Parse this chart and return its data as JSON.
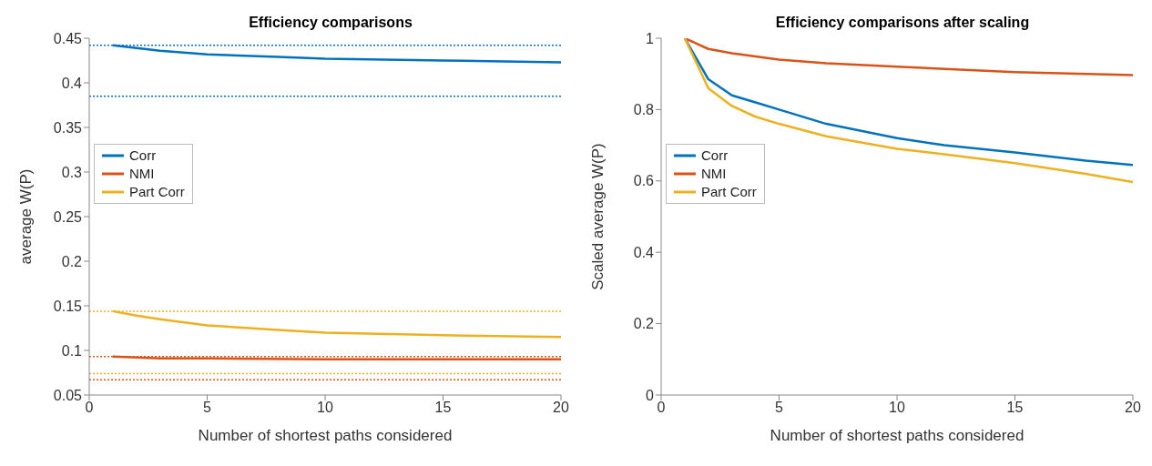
{
  "chart_data": [
    {
      "type": "line",
      "title": "Efficiency comparisons",
      "xlabel": "Number of shortest paths considered",
      "ylabel": "average W(P)",
      "xlim": [
        0,
        20
      ],
      "xticks": [
        0,
        5,
        10,
        15,
        20
      ],
      "ylim": [
        0.05,
        0.45
      ],
      "yticks": [
        0.05,
        0.1,
        0.15,
        0.2,
        0.25,
        0.3,
        0.35,
        0.4,
        0.45
      ],
      "grid": false,
      "legend": "left",
      "marker": "none",
      "line_style": "solid",
      "series": [
        {
          "name": "Corr",
          "color": "#0072bd",
          "x": [
            1,
            2,
            3,
            5,
            8,
            10,
            15,
            20
          ],
          "values": [
            0.442,
            0.439,
            0.436,
            0.432,
            0.429,
            0.427,
            0.425,
            0.423
          ]
        },
        {
          "name": "NMI",
          "color": "#d95319",
          "x": [
            1,
            2,
            3,
            5,
            10,
            15,
            20
          ],
          "values": [
            0.093,
            0.092,
            0.091,
            0.091,
            0.09,
            0.09,
            0.09
          ]
        },
        {
          "name": "Part Corr",
          "color": "#edb120",
          "x": [
            1,
            2,
            3,
            5,
            8,
            10,
            15,
            20
          ],
          "values": [
            0.144,
            0.139,
            0.135,
            0.128,
            0.123,
            0.12,
            0.117,
            0.115
          ]
        }
      ],
      "ref_lines": [
        {
          "axis": "y",
          "value": 0.442,
          "color": "#0072bd",
          "line_style": "dotted"
        },
        {
          "axis": "y",
          "value": 0.385,
          "color": "#0072bd",
          "line_style": "dotted"
        },
        {
          "axis": "y",
          "value": 0.144,
          "color": "#edb120",
          "line_style": "dotted"
        },
        {
          "axis": "y",
          "value": 0.074,
          "color": "#edb120",
          "line_style": "dotted"
        },
        {
          "axis": "y",
          "value": 0.093,
          "color": "#d95319",
          "line_style": "dotted"
        },
        {
          "axis": "y",
          "value": 0.067,
          "color": "#d95319",
          "line_style": "dotted"
        }
      ]
    },
    {
      "type": "line",
      "title": "Efficiency comparisons after scaling",
      "xlabel": "Number of shortest paths considered",
      "ylabel": "Scaled average W(P)",
      "xlim": [
        0,
        20
      ],
      "xticks": [
        0,
        5,
        10,
        15,
        20
      ],
      "ylim": [
        0,
        1
      ],
      "yticks": [
        0,
        0.2,
        0.4,
        0.6,
        0.8,
        1
      ],
      "grid": false,
      "legend": "left",
      "marker": "none",
      "line_style": "solid",
      "series": [
        {
          "name": "Corr",
          "color": "#0072bd",
          "x": [
            1,
            2,
            3,
            4,
            5,
            7,
            10,
            12,
            15,
            18,
            20
          ],
          "values": [
            1,
            0.885,
            0.84,
            0.82,
            0.8,
            0.76,
            0.72,
            0.7,
            0.68,
            0.657,
            0.645
          ]
        },
        {
          "name": "NMI",
          "color": "#d95319",
          "x": [
            1,
            2,
            3,
            5,
            7,
            10,
            15,
            20
          ],
          "values": [
            1,
            0.97,
            0.958,
            0.94,
            0.93,
            0.92,
            0.905,
            0.897
          ]
        },
        {
          "name": "Part Corr",
          "color": "#edb120",
          "x": [
            1,
            2,
            3,
            4,
            5,
            7,
            10,
            12,
            15,
            18,
            20
          ],
          "values": [
            1,
            0.86,
            0.81,
            0.78,
            0.76,
            0.725,
            0.69,
            0.675,
            0.65,
            0.62,
            0.597
          ]
        }
      ]
    }
  ]
}
